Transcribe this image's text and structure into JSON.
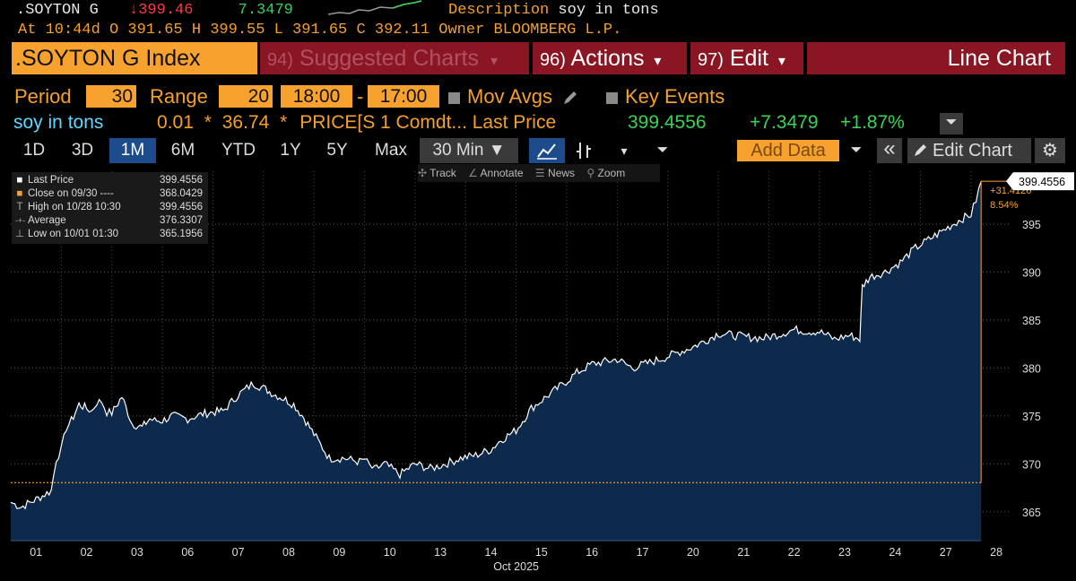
{
  "header": {
    "ticker_short": ".SOYTON G",
    "last_arrow": "↓",
    "last": "399.46",
    "change": "7.3479",
    "description_label": "Description",
    "description": "soy in tons",
    "line2": "At 10:44d  O 391.65  H 399.55  L 391.65  C 392.11  Owner BLOOMBERG L.P."
  },
  "title_bar": {
    "ticker": ".SOYTON G Index",
    "suggested_num": "94)",
    "suggested": "Suggested Charts",
    "actions_num": "96)",
    "actions": "Actions",
    "edit_num": "97)",
    "edit": "Edit",
    "chart_type": "Line Chart",
    "dropdown": "▾"
  },
  "period_row": {
    "period_label": "Period",
    "period_value": "30",
    "range_label": "Range",
    "range_value": "20",
    "time_start": "18:00",
    "dash": "-",
    "time_end": "17:00",
    "mov_avgs": "Mov Avgs",
    "key_events": "Key Events"
  },
  "security_row": {
    "name": "soy in tons",
    "a": "0.01",
    "star1": "*",
    "b": "36.74",
    "star2": "*",
    "formula": "PRICE[S 1 Comdt... Last Price",
    "last": "399.4556",
    "chg": "+7.3479",
    "pct": "+1.87%"
  },
  "toolbar": {
    "ranges": [
      "1D",
      "3D",
      "1M",
      "6M",
      "YTD",
      "1Y",
      "5Y",
      "Max"
    ],
    "selected": "1M",
    "interval": "30 Min ▼",
    "add_data": "Add Data",
    "edit_chart": "Edit Chart",
    "collapse": "«"
  },
  "chart_tools": {
    "track": "Track",
    "annotate": "Annotate",
    "news": "News",
    "zoom": "Zoom"
  },
  "legend": [
    {
      "symbol": "■",
      "label": "Last Price",
      "value": "399.4556"
    },
    {
      "symbol": "■",
      "label": "Close on 09/30 ----",
      "value": "368.0429"
    },
    {
      "symbol": "T",
      "label": "High on 10/28 10:30",
      "value": "399.4556"
    },
    {
      "symbol": "-+-",
      "label": "Average",
      "value": "376.3307"
    },
    {
      "symbol": "⊥",
      "label": "Low on 10/01 01:30",
      "value": "365.1956"
    }
  ],
  "colors": {
    "orange": "#f7a12f",
    "line": "#ffffff",
    "area": "#0d2a4d",
    "reference": "#f7a12f"
  },
  "chart_data": {
    "type": "area",
    "title": "",
    "xlabel": "Oct 2025",
    "ylabel": "",
    "ylim": [
      362,
      400.5
    ],
    "yticks": [
      365,
      370,
      375,
      380,
      385,
      390,
      395
    ],
    "categories": [
      "01",
      "02",
      "03",
      "06",
      "07",
      "08",
      "09",
      "10",
      "13",
      "14",
      "15",
      "16",
      "17",
      "20",
      "21",
      "22",
      "23",
      "24",
      "27",
      "28"
    ],
    "x": [
      0,
      0.2,
      0.5,
      0.8,
      0.9,
      1.0,
      1.1,
      1.2,
      1.35,
      1.5,
      1.6,
      1.7,
      1.8,
      1.9,
      2.0,
      2.2,
      2.4,
      2.6,
      2.75,
      2.85,
      3.0,
      3.2,
      3.5,
      3.8,
      4.0,
      4.2,
      4.5,
      4.8,
      5.0,
      5.2,
      5.4,
      5.6,
      5.8,
      6.0,
      6.3,
      6.6,
      6.9,
      7.0,
      7.1,
      7.2,
      7.4,
      7.7,
      8.0,
      8.3,
      8.6,
      8.9,
      9.2,
      9.5,
      9.7,
      10.0,
      10.3,
      10.6,
      10.9,
      11.2,
      11.5,
      11.8,
      12.0,
      12.3,
      12.6,
      12.9,
      13.2,
      13.5,
      13.8,
      14.0,
      14.3,
      14.6,
      14.9,
      15.2,
      15.5,
      15.8,
      16.0,
      16.3,
      16.6,
      16.8,
      16.85,
      17.0,
      17.3,
      17.6,
      17.9,
      18.2,
      18.5,
      18.8,
      19.0,
      19.1,
      19.2
    ],
    "values": [
      366.0,
      365.5,
      366.3,
      367.2,
      370.5,
      371.5,
      373.8,
      374.5,
      376.2,
      375.8,
      375.5,
      376.4,
      376.5,
      375.4,
      375.3,
      377.0,
      374.2,
      373.8,
      374.7,
      374.5,
      374.5,
      375.0,
      374.7,
      375.2,
      375.4,
      375.5,
      377.2,
      378.4,
      377.9,
      377.3,
      376.8,
      376.2,
      374.8,
      373.1,
      370.6,
      370.6,
      370.2,
      370.5,
      369.8,
      369.4,
      370.0,
      368.9,
      370.0,
      369.5,
      370.0,
      370.6,
      370.9,
      371.5,
      372.5,
      373.5,
      375.8,
      377.0,
      378.2,
      379.5,
      380.4,
      380.7,
      380.9,
      380.0,
      380.5,
      381.0,
      381.6,
      382.2,
      383.0,
      383.6,
      383.4,
      383.2,
      383.1,
      383.5,
      384.0,
      383.8,
      383.8,
      383.0,
      383.4,
      383.0,
      388.5,
      389.5,
      390.0,
      391.0,
      392.5,
      393.5,
      394.5,
      395.5,
      396.0,
      397.5,
      399.4556
    ],
    "last_value": 399.4556,
    "last_label": "399.4556",
    "reference_value": 368.0429,
    "change_label": "+31.4126",
    "change_pct_label": "8.54%"
  }
}
